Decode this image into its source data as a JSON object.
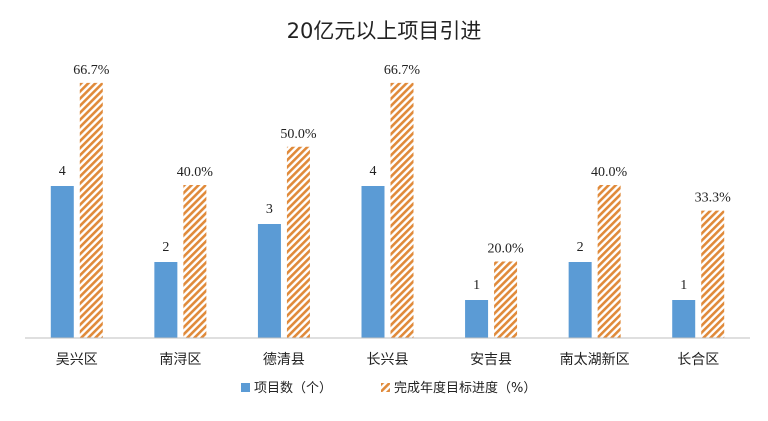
{
  "chart_data": {
    "type": "bar",
    "title": "20亿元以上项目引进",
    "categories": [
      "吴兴区",
      "南浔区",
      "德清县",
      "长兴县",
      "安吉县",
      "南太湖新区",
      "长合区"
    ],
    "series": [
      {
        "name": "项目数（个）",
        "values": [
          4,
          2,
          3,
          4,
          1,
          2,
          1
        ],
        "labels": [
          "4",
          "2",
          "3",
          "4",
          "1",
          "2",
          "1"
        ],
        "color": "#5b9bd5",
        "fill": "solid"
      },
      {
        "name": "完成年度目标进度（%）",
        "values": [
          66.7,
          40.0,
          50.0,
          66.7,
          20.0,
          40.0,
          33.3
        ],
        "labels": [
          "66.7%",
          "40.0%",
          "50.0%",
          "66.7%",
          "20.0%",
          "40.0%",
          "33.3%"
        ],
        "color": "#ed9b4a",
        "fill": "diagonal-stripes"
      }
    ],
    "xlabel": "",
    "ylabel": "",
    "grid": false,
    "legend": "bottom-center"
  }
}
